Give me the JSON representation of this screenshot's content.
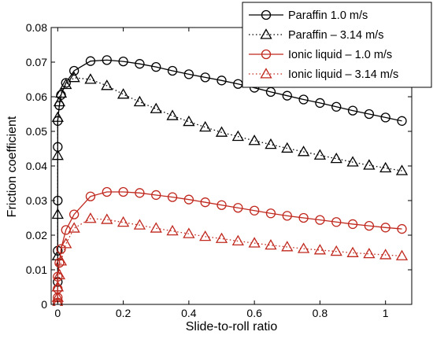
{
  "chart_data": {
    "type": "line",
    "xlabel": "Slide-to-roll ratio",
    "ylabel": "Friction coefficient",
    "xlim": [
      -0.02,
      1.08
    ],
    "ylim": [
      0,
      0.08
    ],
    "xticks": [
      0,
      0.2,
      0.4,
      0.6,
      0.8,
      1
    ],
    "xtick_labels": [
      "0",
      "0.2",
      "0.4",
      "0.6",
      "0.8",
      "1"
    ],
    "yticks": [
      0,
      0.01,
      0.02,
      0.03,
      0.04,
      0.05,
      0.06,
      0.07,
      0.08
    ],
    "ytick_labels": [
      "0",
      "0.01",
      "0.02",
      "0.03",
      "0.04",
      "0.05",
      "0.06",
      "0.07",
      "0.08"
    ],
    "grid": false,
    "legend_position": "top-right",
    "series": [
      {
        "name": "Paraffin 1.0 m/s",
        "color": "#000000",
        "line": "solid",
        "marker": "circle",
        "x": [
          0,
          0,
          0,
          0,
          0,
          0,
          0.005,
          0.01,
          0.025,
          0.05,
          0.1,
          0.15,
          0.2,
          0.25,
          0.3,
          0.35,
          0.4,
          0.45,
          0.5,
          0.55,
          0.6,
          0.65,
          0.7,
          0.75,
          0.8,
          0.85,
          0.9,
          0.95,
          1.0,
          1.05
        ],
        "y": [
          0.0005,
          0.0065,
          0.0155,
          0.03,
          0.0455,
          0.053,
          0.0575,
          0.0605,
          0.064,
          0.0675,
          0.0703,
          0.0706,
          0.0702,
          0.0695,
          0.0686,
          0.0675,
          0.0665,
          0.0656,
          0.0647,
          0.0637,
          0.0626,
          0.0614,
          0.0603,
          0.0592,
          0.0582,
          0.0571,
          0.056,
          0.055,
          0.054,
          0.053
        ]
      },
      {
        "name": "Paraffin – 3.14 m/s",
        "color": "#000000",
        "line": "dotted",
        "marker": "triangle",
        "x": [
          0,
          0,
          0,
          0,
          0,
          0.005,
          0.01,
          0.025,
          0.05,
          0.1,
          0.15,
          0.2,
          0.25,
          0.3,
          0.35,
          0.4,
          0.45,
          0.5,
          0.55,
          0.6,
          0.65,
          0.7,
          0.75,
          0.8,
          0.85,
          0.9,
          0.95,
          1.0,
          1.05
        ],
        "y": [
          0.005,
          0.014,
          0.026,
          0.043,
          0.054,
          0.0585,
          0.061,
          0.0635,
          0.0655,
          0.065,
          0.0632,
          0.0607,
          0.0585,
          0.0565,
          0.0545,
          0.0528,
          0.0512,
          0.0497,
          0.0485,
          0.0473,
          0.0462,
          0.0451,
          0.0441,
          0.0431,
          0.0421,
          0.0411,
          0.0402,
          0.0394,
          0.0386
        ]
      },
      {
        "name": "Ionic liquid – 1.0 m/s",
        "color": "#c0281e",
        "line": "solid",
        "marker": "circle",
        "x": [
          0,
          0,
          0,
          0,
          0.005,
          0.01,
          0.025,
          0.05,
          0.1,
          0.15,
          0.2,
          0.25,
          0.3,
          0.35,
          0.4,
          0.45,
          0.5,
          0.55,
          0.6,
          0.65,
          0.7,
          0.75,
          0.8,
          0.85,
          0.9,
          0.95,
          1.0,
          1.05
        ],
        "y": [
          0.0005,
          0.002,
          0.0045,
          0.008,
          0.012,
          0.016,
          0.0215,
          0.026,
          0.0312,
          0.0325,
          0.0325,
          0.0322,
          0.0316,
          0.031,
          0.0303,
          0.0295,
          0.0287,
          0.0279,
          0.0271,
          0.0263,
          0.0256,
          0.025,
          0.0244,
          0.0238,
          0.0232,
          0.0227,
          0.0222,
          0.0218
        ]
      },
      {
        "name": "Ionic liquid – 3.14 m/s",
        "color": "#c0281e",
        "line": "dotted",
        "marker": "triangle",
        "x": [
          0,
          0,
          0,
          0.005,
          0.01,
          0.025,
          0.05,
          0.1,
          0.15,
          0.2,
          0.25,
          0.3,
          0.35,
          0.4,
          0.45,
          0.5,
          0.55,
          0.6,
          0.65,
          0.7,
          0.75,
          0.8,
          0.85,
          0.9,
          0.95,
          1.0,
          1.05
        ],
        "y": [
          0.0005,
          0.002,
          0.005,
          0.0085,
          0.0125,
          0.0175,
          0.022,
          0.0248,
          0.0245,
          0.0237,
          0.0229,
          0.022,
          0.0212,
          0.0204,
          0.0196,
          0.019,
          0.0183,
          0.0177,
          0.0171,
          0.0166,
          0.0161,
          0.0157,
          0.0153,
          0.0149,
          0.0146,
          0.0143,
          0.014
        ]
      }
    ]
  }
}
